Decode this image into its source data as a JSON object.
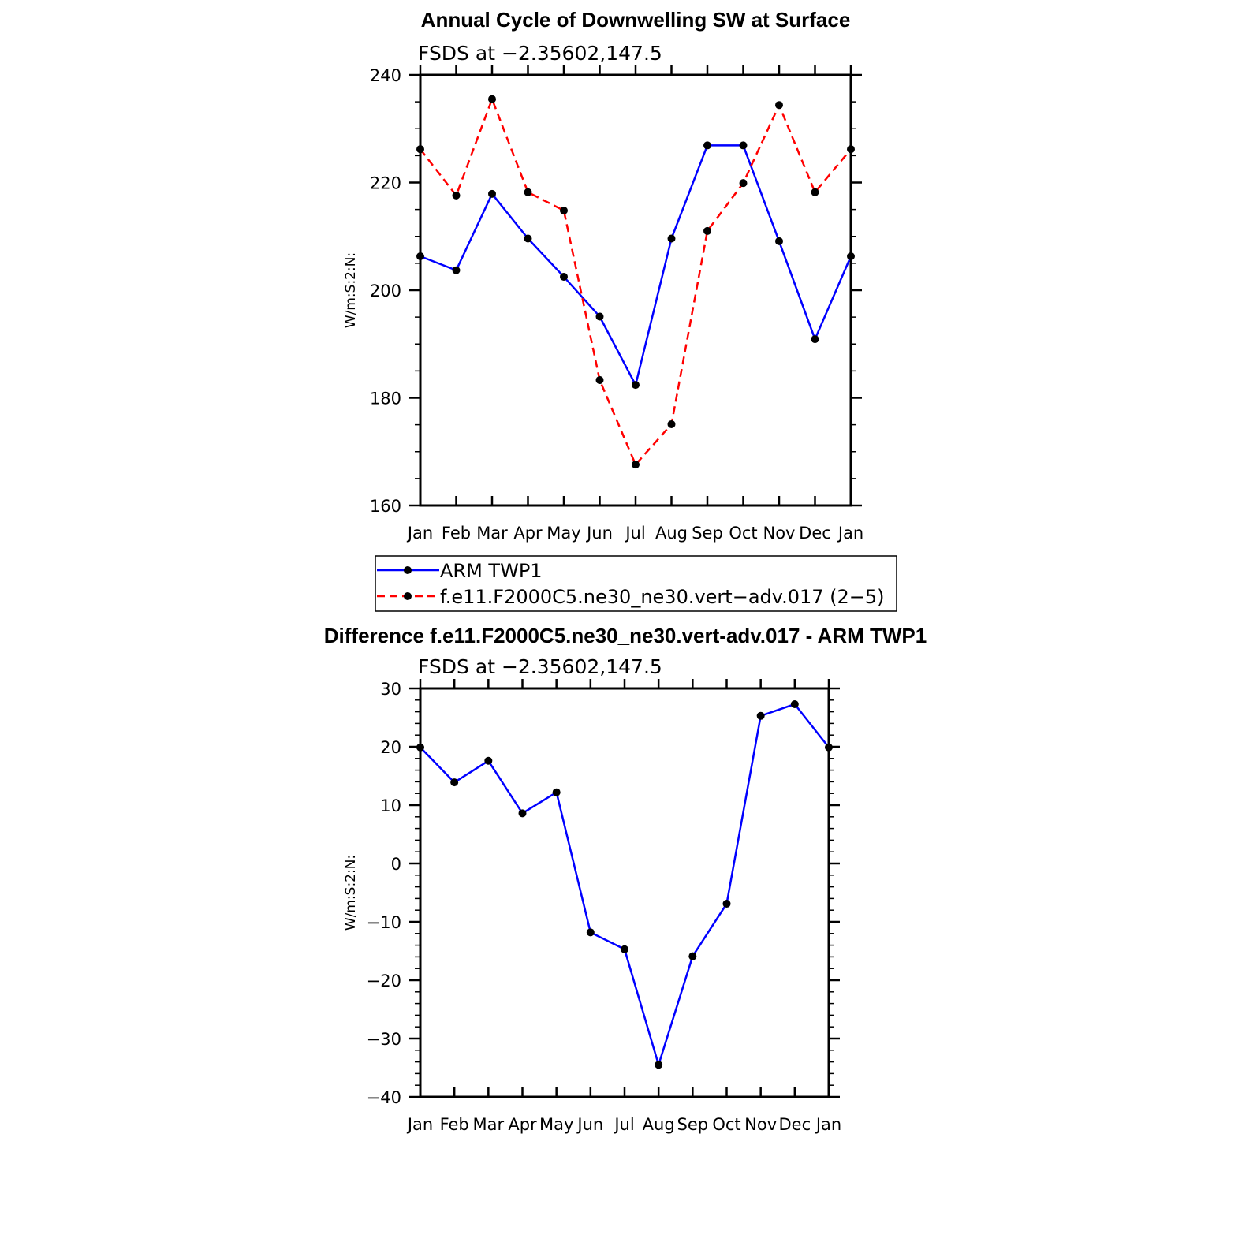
{
  "chart_data": [
    {
      "type": "line",
      "title": "Annual Cycle of Downwelling SW at Surface",
      "subtitle": "FSDS at −2.35602,147.5",
      "ylabel": "W/m:S:2:N:",
      "categories": [
        "Jan",
        "Feb",
        "Mar",
        "Apr",
        "May",
        "Jun",
        "Jul",
        "Aug",
        "Sep",
        "Oct",
        "Nov",
        "Dec",
        "Jan"
      ],
      "ylim": [
        160,
        240
      ],
      "yticks": [
        160,
        180,
        200,
        220,
        240
      ],
      "series": [
        {
          "name": "ARM TWP1",
          "color": "#0000ff",
          "dash": "solid",
          "values": [
            206.3,
            203.7,
            217.9,
            209.6,
            202.5,
            195.1,
            182.4,
            209.6,
            226.9,
            226.9,
            209.1,
            190.9,
            206.3
          ]
        },
        {
          "name": "f.e11.F2000C5.ne30_ne30.vert−adv.017 (2−5)",
          "color": "#ff0000",
          "dash": "dashed",
          "values": [
            226.2,
            217.6,
            235.5,
            218.2,
            214.8,
            183.3,
            167.6,
            175.1,
            211.0,
            219.9,
            234.4,
            218.2,
            226.2
          ]
        }
      ],
      "legend": "below"
    },
    {
      "type": "line",
      "title": "Difference f.e11.F2000C5.ne30_ne30.vert-adv.017 - ARM TWP1",
      "subtitle": "FSDS at −2.35602,147.5",
      "ylabel": "W/m:S:2:N:",
      "categories": [
        "Jan",
        "Feb",
        "Mar",
        "Apr",
        "May",
        "Jun",
        "Jul",
        "Aug",
        "Sep",
        "Oct",
        "Nov",
        "Dec",
        "Jan"
      ],
      "ylim": [
        -40,
        30
      ],
      "yticks": [
        -40,
        -30,
        -20,
        -10,
        0,
        10,
        20,
        30
      ],
      "series": [
        {
          "color": "#0000ff",
          "dash": "solid",
          "values": [
            19.9,
            13.9,
            17.6,
            8.6,
            12.2,
            -11.8,
            -14.7,
            -34.5,
            -15.9,
            -6.9,
            25.3,
            27.3,
            19.9
          ]
        }
      ]
    }
  ]
}
